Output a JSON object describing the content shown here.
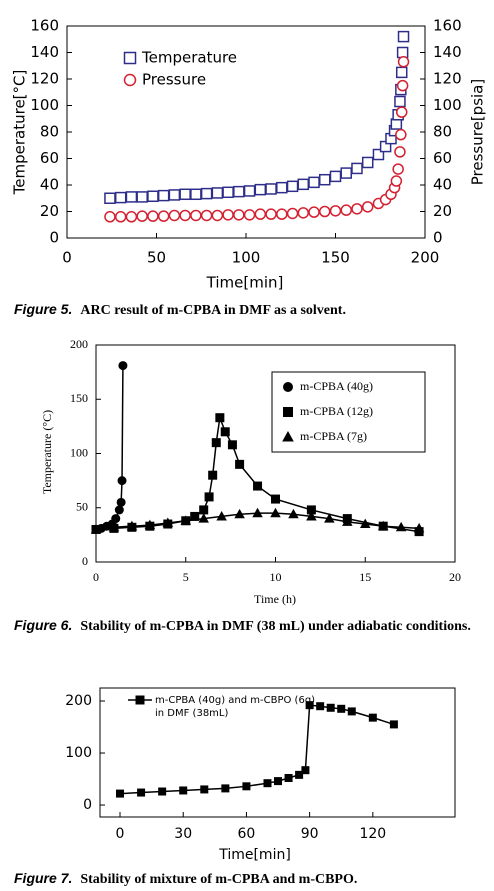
{
  "chart_data": [
    {
      "type": "scatter",
      "xlabel": "Time[min]",
      "ylabel": "Temperature[°C]",
      "y2label": "Pressure[psia]",
      "xlim": [
        0,
        200
      ],
      "xticks": [
        0,
        50,
        100,
        150,
        200
      ],
      "ylim": [
        0,
        160
      ],
      "yticks": [
        0,
        20,
        40,
        60,
        80,
        100,
        120,
        140,
        160
      ],
      "y2lim": [
        0,
        160
      ],
      "y2ticks": [
        0,
        20,
        40,
        60,
        80,
        100,
        120,
        140,
        160
      ],
      "legend": "upper left",
      "filled": false,
      "line": false,
      "x": [
        24,
        30,
        36,
        42,
        48,
        54,
        60,
        66,
        72,
        78,
        84,
        90,
        96,
        102,
        108,
        114,
        120,
        126,
        132,
        138,
        144,
        150,
        156,
        162,
        168,
        174,
        178,
        181,
        183,
        184,
        185,
        186,
        186.5,
        187,
        187.5,
        188
      ],
      "series": [
        {
          "name": "Temperature",
          "color": "#2e2e8a",
          "marker": "square",
          "values": [
            30,
            30.5,
            31,
            31,
            31.5,
            32,
            32.5,
            33,
            33,
            33.5,
            34,
            34.5,
            35,
            35.5,
            36.5,
            37,
            38,
            39,
            40.5,
            42,
            44,
            46.5,
            49,
            52.5,
            57,
            63,
            69,
            75,
            81,
            86,
            93,
            103,
            112,
            125,
            140,
            152
          ]
        },
        {
          "name": "Pressure",
          "color": "#d42030",
          "marker": "circle",
          "axis": "y2",
          "values": [
            16,
            16,
            16,
            16.5,
            16.5,
            16.5,
            17,
            17,
            17,
            17,
            17,
            17.5,
            17.5,
            17.5,
            18,
            18,
            18,
            18.5,
            19,
            19.5,
            20,
            20.5,
            21,
            22,
            23.5,
            26,
            29,
            33,
            38,
            43,
            52,
            65,
            78,
            95,
            115,
            133
          ]
        }
      ],
      "caption": {
        "label": "Figure 5.",
        "text": "ARC result of m-CPBA in DMF as a solvent."
      }
    },
    {
      "type": "line",
      "xlabel": "Time (h)",
      "ylabel": "Temperature (°C)",
      "xlim": [
        0,
        20
      ],
      "xticks": [
        0,
        5,
        10,
        15,
        20
      ],
      "ylim": [
        0,
        200
      ],
      "yticks": [
        0,
        50,
        100,
        150,
        200
      ],
      "legend": "upper right",
      "filled": true,
      "line": true,
      "series": [
        {
          "name": "m-CPBA (40g)",
          "color": "#000000",
          "marker": "circle",
          "x": [
            0,
            0.3,
            0.6,
            0.9,
            1.1,
            1.3,
            1.4,
            1.45,
            1.5
          ],
          "values": [
            30,
            31,
            33,
            35,
            40,
            48,
            55,
            75,
            181
          ]
        },
        {
          "name": "m-CPBA (12g)",
          "color": "#000000",
          "marker": "square",
          "x": [
            0,
            1,
            2,
            3,
            4,
            5,
            5.5,
            6,
            6.3,
            6.5,
            6.7,
            6.9,
            7.2,
            7.6,
            8,
            9,
            10,
            12,
            14,
            16,
            18
          ],
          "values": [
            30,
            31,
            32,
            33,
            35,
            38,
            42,
            48,
            60,
            80,
            110,
            133,
            120,
            108,
            90,
            70,
            58,
            48,
            40,
            33,
            28
          ]
        },
        {
          "name": "m-CPBA (7g)",
          "color": "#000000",
          "marker": "triangle",
          "x": [
            0,
            1,
            2,
            3,
            4,
            5,
            6,
            7,
            8,
            9,
            10,
            11,
            12,
            13,
            14,
            15,
            16,
            17,
            18
          ],
          "values": [
            30,
            32,
            33,
            34,
            36,
            38,
            40,
            42,
            44,
            45,
            45,
            44,
            42,
            40,
            37,
            35,
            33,
            32,
            31
          ]
        }
      ],
      "caption": {
        "label": "Figure 6.",
        "text": "Stability of m-CPBA in DMF (38 mL) under adiabatic conditions."
      }
    },
    {
      "type": "line",
      "xlabel": "Time[min]",
      "xlim": [
        -9.5,
        159
      ],
      "xticks": [
        0,
        30,
        60,
        90,
        120
      ],
      "ylim": [
        -23,
        225
      ],
      "yticks": [
        0,
        100,
        200
      ],
      "legend": "upper left",
      "filled": true,
      "line": true,
      "series": [
        {
          "name": [
            "m-CPBA (40g) and m-CBPO (6g)",
            "in DMF (38mL)"
          ],
          "color": "#000000",
          "marker": "square",
          "x": [
            0,
            10,
            20,
            30,
            40,
            50,
            60,
            70,
            75,
            80,
            85,
            88,
            90,
            95,
            100,
            105,
            110,
            120,
            130
          ],
          "values": [
            22,
            24,
            26,
            28,
            30,
            32,
            36,
            42,
            46,
            52,
            58,
            67,
            192,
            190,
            187,
            185,
            180,
            168,
            155
          ]
        }
      ],
      "caption": {
        "label": "Figure 7.",
        "text": "Stability of mixture of m-CPBA and m-CBPO."
      }
    }
  ]
}
